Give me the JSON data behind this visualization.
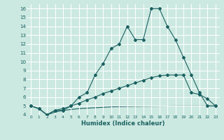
{
  "xlabel": "Humidex (Indice chaleur)",
  "xlim": [
    -0.5,
    23.5
  ],
  "ylim": [
    4,
    16.5
  ],
  "yticks": [
    4,
    5,
    6,
    7,
    8,
    9,
    10,
    11,
    12,
    13,
    14,
    15,
    16
  ],
  "xticks": [
    0,
    1,
    2,
    3,
    4,
    5,
    6,
    7,
    8,
    9,
    10,
    11,
    12,
    13,
    14,
    15,
    16,
    17,
    18,
    19,
    20,
    21,
    22,
    23
  ],
  "background_color": "#cce9e1",
  "grid_color": "#ffffff",
  "line_color": "#1a6060",
  "line1_x": [
    0,
    1,
    2,
    3,
    4,
    5,
    6,
    7,
    8,
    9,
    10,
    11,
    12,
    13,
    14,
    15,
    16,
    17,
    18,
    19,
    20,
    21,
    22,
    23
  ],
  "line1_y": [
    5.0,
    4.7,
    4.0,
    4.5,
    4.5,
    5.0,
    6.0,
    6.5,
    8.5,
    9.8,
    11.5,
    12.0,
    14.0,
    12.5,
    12.5,
    16.0,
    16.0,
    14.0,
    12.5,
    10.5,
    8.5,
    6.5,
    5.0,
    5.0
  ],
  "line2_x": [
    0,
    1,
    2,
    3,
    4,
    5,
    6,
    7,
    8,
    9,
    10,
    11,
    12,
    13,
    14,
    15,
    16,
    17,
    18,
    19,
    20,
    21,
    22,
    23
  ],
  "line2_y": [
    5.0,
    4.7,
    4.0,
    4.5,
    4.7,
    5.0,
    5.3,
    5.7,
    6.0,
    6.4,
    6.7,
    7.0,
    7.3,
    7.6,
    7.9,
    8.2,
    8.4,
    8.5,
    8.5,
    8.5,
    6.5,
    6.3,
    5.8,
    5.0
  ],
  "line3_x": [
    0,
    1,
    2,
    3,
    4,
    5,
    6,
    7,
    8,
    9,
    10,
    11,
    12,
    13,
    14,
    15,
    16,
    17,
    18,
    19,
    20,
    21,
    22,
    23
  ],
  "line3_y": [
    5.0,
    4.7,
    4.0,
    4.3,
    4.5,
    4.6,
    4.7,
    4.75,
    4.8,
    4.85,
    4.9,
    4.92,
    4.94,
    4.95,
    4.96,
    4.97,
    4.98,
    4.99,
    5.0,
    5.0,
    5.0,
    5.0,
    5.0,
    5.0
  ],
  "markersize": 2.0,
  "linewidth": 0.8
}
